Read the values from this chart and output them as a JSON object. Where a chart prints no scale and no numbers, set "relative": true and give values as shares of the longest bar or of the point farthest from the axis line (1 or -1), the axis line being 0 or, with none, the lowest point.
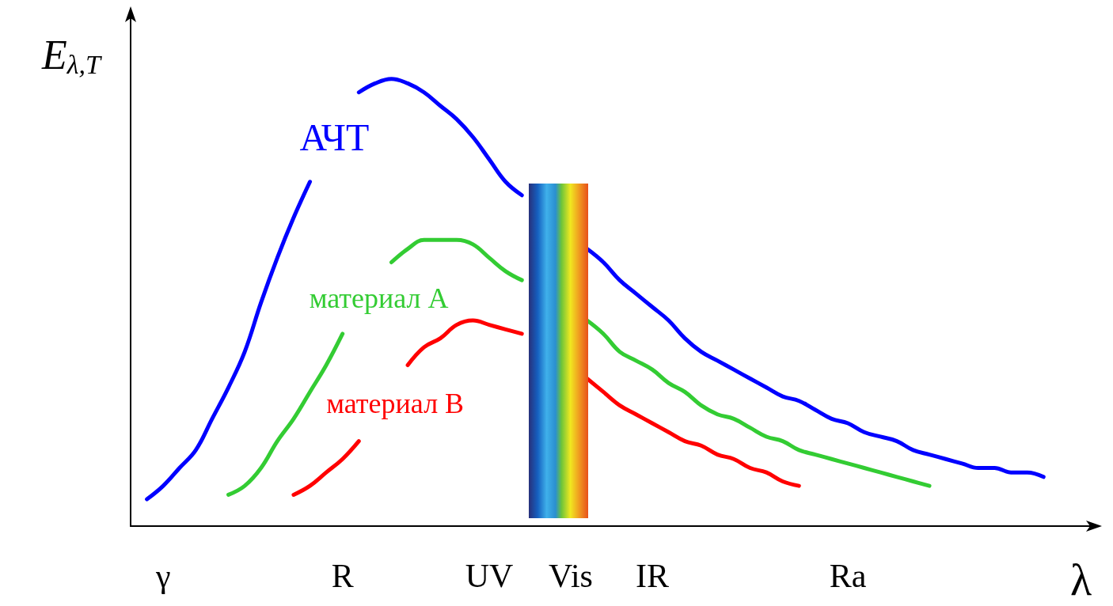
{
  "chart_data": {
    "type": "line",
    "relative": true,
    "xlabel": "λ",
    "ylabel": "E$_{λ,T}$",
    "categories": [
      null,
      null,
      "γ",
      null,
      null,
      null,
      null,
      null,
      null,
      null,
      null,
      null,
      null,
      "R",
      null,
      null,
      null,
      null,
      null,
      null,
      null,
      null,
      "UV",
      null,
      null,
      null,
      null,
      "Vis",
      null,
      null,
      null,
      null,
      "IR",
      null,
      null,
      null,
      null,
      null,
      null,
      null,
      null,
      null,
      null,
      null,
      "Ra",
      null,
      null,
      null,
      null,
      null,
      null,
      null,
      null,
      null,
      null,
      null,
      null,
      null,
      null,
      null
    ],
    "marker": "none",
    "line_style": "solid",
    "grid": false,
    "legend": false,
    "series": [
      {
        "name": "АЧТ",
        "color": "#0000ff",
        "values": [
          null,
          0.06,
          0.09,
          0.13,
          0.17,
          0.24,
          0.31,
          0.39,
          0.5,
          0.6,
          0.69,
          0.77,
          null,
          null,
          0.97,
          0.99,
          1.0,
          0.99,
          0.97,
          0.94,
          0.91,
          0.87,
          0.82,
          0.77,
          0.74,
          null,
          null,
          null,
          0.62,
          0.59,
          0.55,
          0.52,
          0.49,
          0.46,
          0.42,
          0.39,
          0.37,
          0.35,
          0.33,
          0.31,
          0.29,
          0.28,
          0.26,
          0.24,
          0.23,
          0.21,
          0.2,
          0.19,
          0.17,
          0.16,
          0.15,
          0.14,
          0.13,
          0.13,
          0.12,
          0.12,
          0.11,
          null,
          null,
          null
        ]
      },
      {
        "name": "материал A",
        "color": "#33cc33",
        "values": [
          null,
          null,
          null,
          null,
          null,
          null,
          0.07,
          0.09,
          0.13,
          0.19,
          0.24,
          0.3,
          0.36,
          0.43,
          null,
          null,
          0.59,
          0.62,
          0.64,
          0.64,
          0.64,
          0.63,
          0.6,
          0.57,
          0.55,
          null,
          null,
          null,
          0.46,
          0.43,
          0.39,
          0.37,
          0.35,
          0.32,
          0.3,
          0.27,
          0.25,
          0.24,
          0.22,
          0.2,
          0.19,
          0.17,
          0.16,
          0.15,
          0.14,
          0.13,
          0.12,
          0.11,
          0.1,
          0.09,
          null,
          null,
          null,
          null,
          null,
          null,
          null,
          null,
          null,
          null
        ]
      },
      {
        "name": "материал B",
        "color": "#ff0000",
        "values": [
          null,
          null,
          null,
          null,
          null,
          null,
          null,
          null,
          null,
          null,
          0.07,
          0.09,
          0.12,
          0.15,
          0.19,
          null,
          null,
          0.36,
          0.4,
          0.42,
          0.45,
          0.46,
          0.45,
          0.44,
          0.43,
          null,
          null,
          null,
          0.33,
          0.3,
          0.27,
          0.25,
          0.23,
          0.21,
          0.19,
          0.18,
          0.16,
          0.15,
          0.13,
          0.12,
          0.1,
          0.09,
          null,
          null,
          null,
          null,
          null,
          null,
          null,
          null,
          null,
          null,
          null,
          null,
          null,
          null,
          null,
          null,
          null,
          null
        ]
      }
    ]
  }
}
